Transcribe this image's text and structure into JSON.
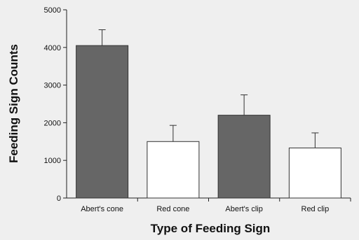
{
  "chart_data": {
    "type": "bar",
    "title": "",
    "xlabel": "Type of Feeding Sign",
    "ylabel": "Feeding Sign Counts",
    "ylim": [
      0,
      5000
    ],
    "yticks": [
      0,
      1000,
      2000,
      3000,
      4000,
      5000
    ],
    "categories": [
      "Abert's cone",
      "Red cone",
      "Abert's clip",
      "Red clip"
    ],
    "values": [
      4050,
      1500,
      2200,
      1330
    ],
    "error_upper": [
      420,
      430,
      540,
      400
    ],
    "bar_fills": [
      "#666666",
      "#ffffff",
      "#666666",
      "#ffffff"
    ],
    "grid": false
  }
}
